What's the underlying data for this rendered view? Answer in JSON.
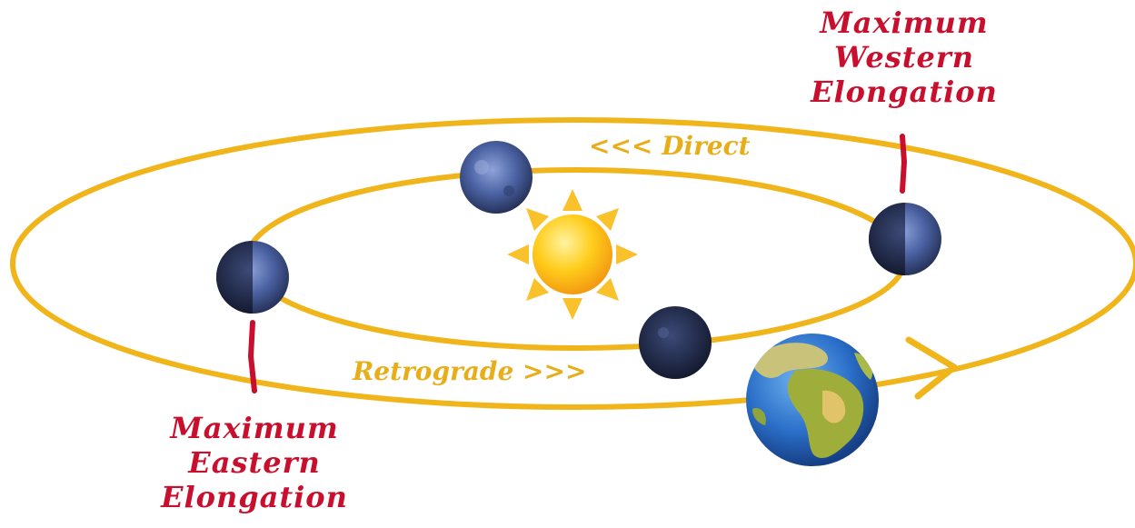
{
  "labels": {
    "western": [
      "Maximum",
      "Western",
      "Elongation"
    ],
    "eastern": [
      "Maximum",
      "Eastern",
      "Elongation"
    ],
    "direct": "<<< Direct",
    "retrograde": "Retrograde >>>"
  },
  "colors": {
    "orbit": "#f1b51c",
    "label_red": "#c8102e",
    "motion_gold": "#e8ae1a",
    "sun_core": "#ffc20e",
    "sun_ray": "#f9c12c",
    "mercury": "#3b4f86",
    "earth_ocean": "#2b6fc9",
    "earth_land": "#9fae3a"
  },
  "icons": {
    "sun": "sun-icon",
    "earth": "earth-icon",
    "mercury": "mercury-icon"
  }
}
